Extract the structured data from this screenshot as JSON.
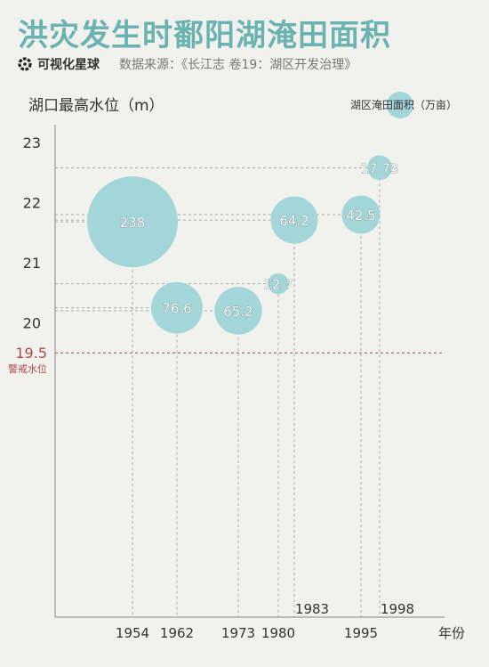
{
  "header": {
    "title": "洪灾发生时鄱阳湖淹田面积",
    "brand": "可视化星球",
    "source": "数据来源：《长江志  卷19：湖区开发治理》"
  },
  "colors": {
    "title": "#6bb3b0",
    "bubble": "#a3d6d8",
    "warning": "#b04848",
    "guide": "#aaaaaa"
  },
  "chart_data": {
    "type": "scatter",
    "ylabel": "湖口最高水位（m）",
    "xlabel": "年份",
    "legend_label": "湖区淹田面积（万亩）",
    "legend_position": "top-right",
    "ylim": [
      19.5,
      23
    ],
    "y_ticks": [
      20,
      21,
      22,
      23
    ],
    "x_ticks": [
      {
        "label": "1954",
        "year": 1954,
        "row": "bottom"
      },
      {
        "label": "1962",
        "year": 1962,
        "row": "bottom"
      },
      {
        "label": "1973",
        "year": 1973,
        "row": "bottom"
      },
      {
        "label": "1980",
        "year": 1980,
        "row": "bottom"
      },
      {
        "label": "1983",
        "year": 1983,
        "row": "upper"
      },
      {
        "label": "1995",
        "year": 1995,
        "row": "bottom"
      },
      {
        "label": "1998",
        "year": 1998,
        "row": "upper"
      }
    ],
    "warning_level": {
      "value": 19.5,
      "label": "19.5",
      "note": "警戒水位"
    },
    "points": [
      {
        "year": 1954,
        "water_level": 21.68,
        "area": 238,
        "label": "238"
      },
      {
        "year": 1962,
        "water_level": 20.25,
        "area": 76.6,
        "label": "76.6"
      },
      {
        "year": 1973,
        "water_level": 20.2,
        "area": 65.2,
        "label": "65.2"
      },
      {
        "year": 1980,
        "water_level": 20.65,
        "area": 12.7,
        "label": "12.7"
      },
      {
        "year": 1983,
        "water_level": 21.71,
        "area": 64.2,
        "label": "64.2"
      },
      {
        "year": 1995,
        "water_level": 21.8,
        "area": 42.5,
        "label": "42.5"
      },
      {
        "year": 1998,
        "water_level": 22.58,
        "area": 17.73,
        "label": "17.73"
      }
    ]
  }
}
